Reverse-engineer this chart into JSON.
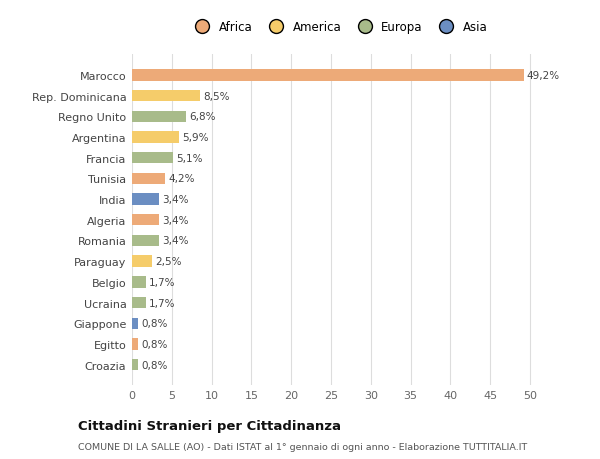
{
  "countries": [
    "Marocco",
    "Rep. Dominicana",
    "Regno Unito",
    "Argentina",
    "Francia",
    "Tunisia",
    "India",
    "Algeria",
    "Romania",
    "Paraguay",
    "Belgio",
    "Ucraina",
    "Giappone",
    "Egitto",
    "Croazia"
  ],
  "values": [
    49.2,
    8.5,
    6.8,
    5.9,
    5.1,
    4.2,
    3.4,
    3.4,
    3.4,
    2.5,
    1.7,
    1.7,
    0.8,
    0.8,
    0.8
  ],
  "labels": [
    "49,2%",
    "8,5%",
    "6,8%",
    "5,9%",
    "5,1%",
    "4,2%",
    "3,4%",
    "3,4%",
    "3,4%",
    "2,5%",
    "1,7%",
    "1,7%",
    "0,8%",
    "0,8%",
    "0,8%"
  ],
  "colors": [
    "#EDAA78",
    "#F5CC6A",
    "#A8BB8A",
    "#F5CC6A",
    "#A8BB8A",
    "#EDAA78",
    "#6B8EC2",
    "#EDAA78",
    "#A8BB8A",
    "#F5CC6A",
    "#A8BB8A",
    "#A8BB8A",
    "#6B8EC2",
    "#EDAA78",
    "#A8BB8A"
  ],
  "legend_order": [
    "Africa",
    "America",
    "Europa",
    "Asia"
  ],
  "legend_colors": {
    "Africa": "#EDAA78",
    "America": "#F5CC6A",
    "Europa": "#A8BB8A",
    "Asia": "#6B8EC2"
  },
  "xlim": [
    0,
    52
  ],
  "xticks": [
    0,
    5,
    10,
    15,
    20,
    25,
    30,
    35,
    40,
    45,
    50
  ],
  "title_main": "Cittadini Stranieri per Cittadinanza",
  "title_sub": "COMUNE DI LA SALLE (AO) - Dati ISTAT al 1° gennaio di ogni anno - Elaborazione TUTTITALIA.IT",
  "bg_color": "#FFFFFF",
  "grid_color": "#DDDDDD"
}
